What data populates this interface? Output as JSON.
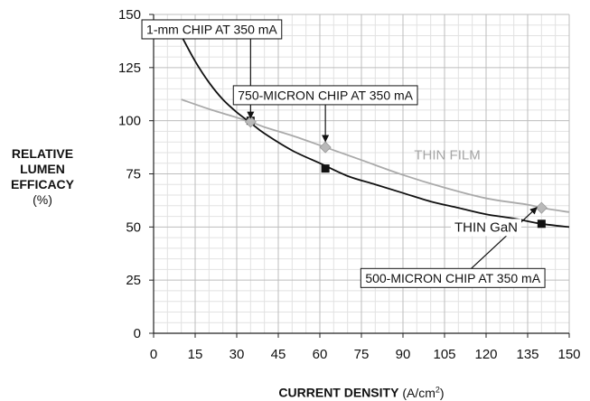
{
  "chart_data": {
    "type": "line",
    "xlabel": "CURRENT DENSITY",
    "xlabel_unit_prefix": "(A/cm",
    "xlabel_unit_sup": "2",
    "xlabel_unit_suffix": ")",
    "ylabel_lines": [
      "RELATIVE",
      "LUMEN",
      "EFFICACY"
    ],
    "ylabel_unit": "(%)",
    "xlim": [
      0,
      150
    ],
    "ylim": [
      0,
      150
    ],
    "x_ticks": [
      0,
      15,
      30,
      45,
      60,
      75,
      90,
      105,
      120,
      135,
      150
    ],
    "x_tick_labels": [
      "0",
      "15",
      "30",
      "45",
      "60",
      "75",
      "90",
      "105",
      "120",
      "135",
      "150"
    ],
    "y_ticks": [
      0,
      25,
      50,
      75,
      100,
      125,
      150
    ],
    "y_tick_labels": [
      "0",
      "25",
      "50",
      "75",
      "100",
      "125",
      "150"
    ],
    "x_minor_step": 5,
    "y_minor_step": 5,
    "grid": true,
    "series": [
      {
        "name": "THIN GaN",
        "color": "#111111",
        "x": [
          10,
          15,
          20,
          25,
          30,
          35,
          40,
          50,
          60,
          70,
          80,
          90,
          100,
          110,
          120,
          130,
          140,
          150
        ],
        "y": [
          140,
          128,
          118,
          110,
          104,
          99,
          94,
          86,
          80,
          74,
          70,
          66,
          62,
          59,
          56,
          54,
          51.5,
          50
        ],
        "markers": [
          {
            "x": 35,
            "y": 100
          },
          {
            "x": 62,
            "y": 77.5
          },
          {
            "x": 140,
            "y": 51.5
          }
        ],
        "marker_shape": "square"
      },
      {
        "name": "THIN FILM",
        "color": "#aaaaaa",
        "x": [
          10,
          20,
          30,
          35,
          40,
          50,
          62,
          75,
          90,
          105,
          120,
          135,
          140,
          150
        ],
        "y": [
          110,
          105.5,
          101.5,
          99.5,
          97,
          93,
          87.5,
          81.5,
          74.5,
          68.5,
          63.5,
          60.5,
          59,
          57
        ],
        "markers": [
          {
            "x": 35,
            "y": 99.5
          },
          {
            "x": 62,
            "y": 87.5
          },
          {
            "x": 140,
            "y": 59
          }
        ],
        "marker_shape": "diamond"
      }
    ],
    "annotations": [
      {
        "text": "1-mm CHIP AT 350 mA",
        "anchor_x": 21,
        "anchor_y": 143,
        "target_x": 35,
        "target_y": 100
      },
      {
        "text": "750-MICRON CHIP AT 350 mA",
        "anchor_x": 62,
        "anchor_y": 112,
        "target_x": 62,
        "target_y": 89
      },
      {
        "text": "500-MICRON CHIP AT 350 mA",
        "anchor_x": 108,
        "anchor_y": 26,
        "target_x": 139,
        "target_y": 60
      }
    ]
  }
}
